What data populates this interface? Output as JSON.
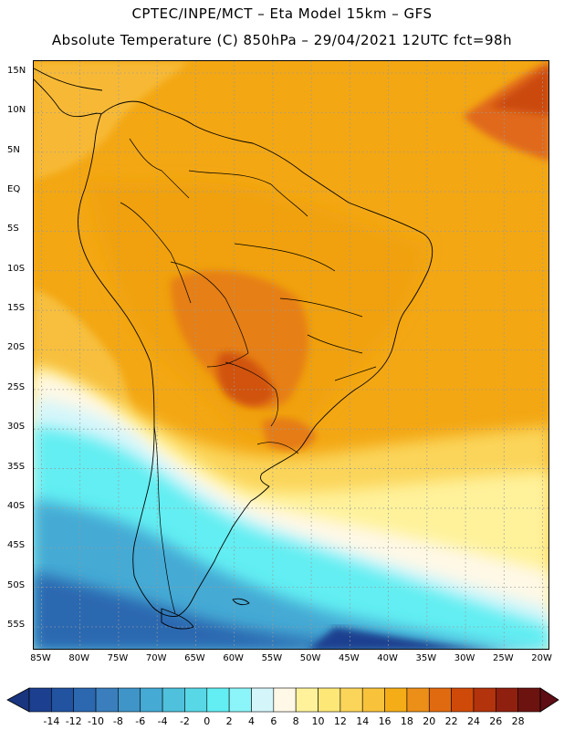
{
  "header": {
    "line1": "CPTEC/INPE/MCT –  Eta Model 15km – GFS",
    "line2": "Absolute Temperature (C) 850hPa – 29/04/2021 12UTC fct=98h"
  },
  "map": {
    "lat_labels": [
      "15N",
      "10N",
      "5N",
      "EQ",
      "5S",
      "10S",
      "15S",
      "20S",
      "25S",
      "30S",
      "35S",
      "40S",
      "45S",
      "50S",
      "55S"
    ],
    "lon_labels": [
      "85W",
      "80W",
      "75W",
      "70W",
      "65W",
      "60W",
      "55W",
      "50W",
      "45W",
      "40W",
      "35W",
      "30W",
      "25W",
      "20W"
    ],
    "lon_extent": [
      -86,
      -19
    ],
    "lat_extent": [
      16.5,
      -58
    ]
  },
  "colorbar": {
    "labels": [
      "-14",
      "-12",
      "-10",
      "-8",
      "-6",
      "-4",
      "-2",
      "0",
      "2",
      "4",
      "6",
      "8",
      "10",
      "12",
      "14",
      "16",
      "18",
      "20",
      "22",
      "24",
      "26",
      "28"
    ],
    "colors": [
      "#1c3f8f",
      "#2253a0",
      "#2b68b0",
      "#3a7ebd",
      "#3f95c8",
      "#45aad4",
      "#4fc1dd",
      "#58d8e6",
      "#62eef2",
      "#8cf5f9",
      "#d4f6fb",
      "#fff8e6",
      "#fff29b",
      "#fde777",
      "#fbd55a",
      "#f8c33b",
      "#f5ad17",
      "#ec8f18",
      "#e06a10",
      "#cf4a09",
      "#b2330c",
      "#8f200f",
      "#6c1310"
    ],
    "low_arrow_color": "#1a357f",
    "high_arrow_color": "#5e0d14"
  }
}
